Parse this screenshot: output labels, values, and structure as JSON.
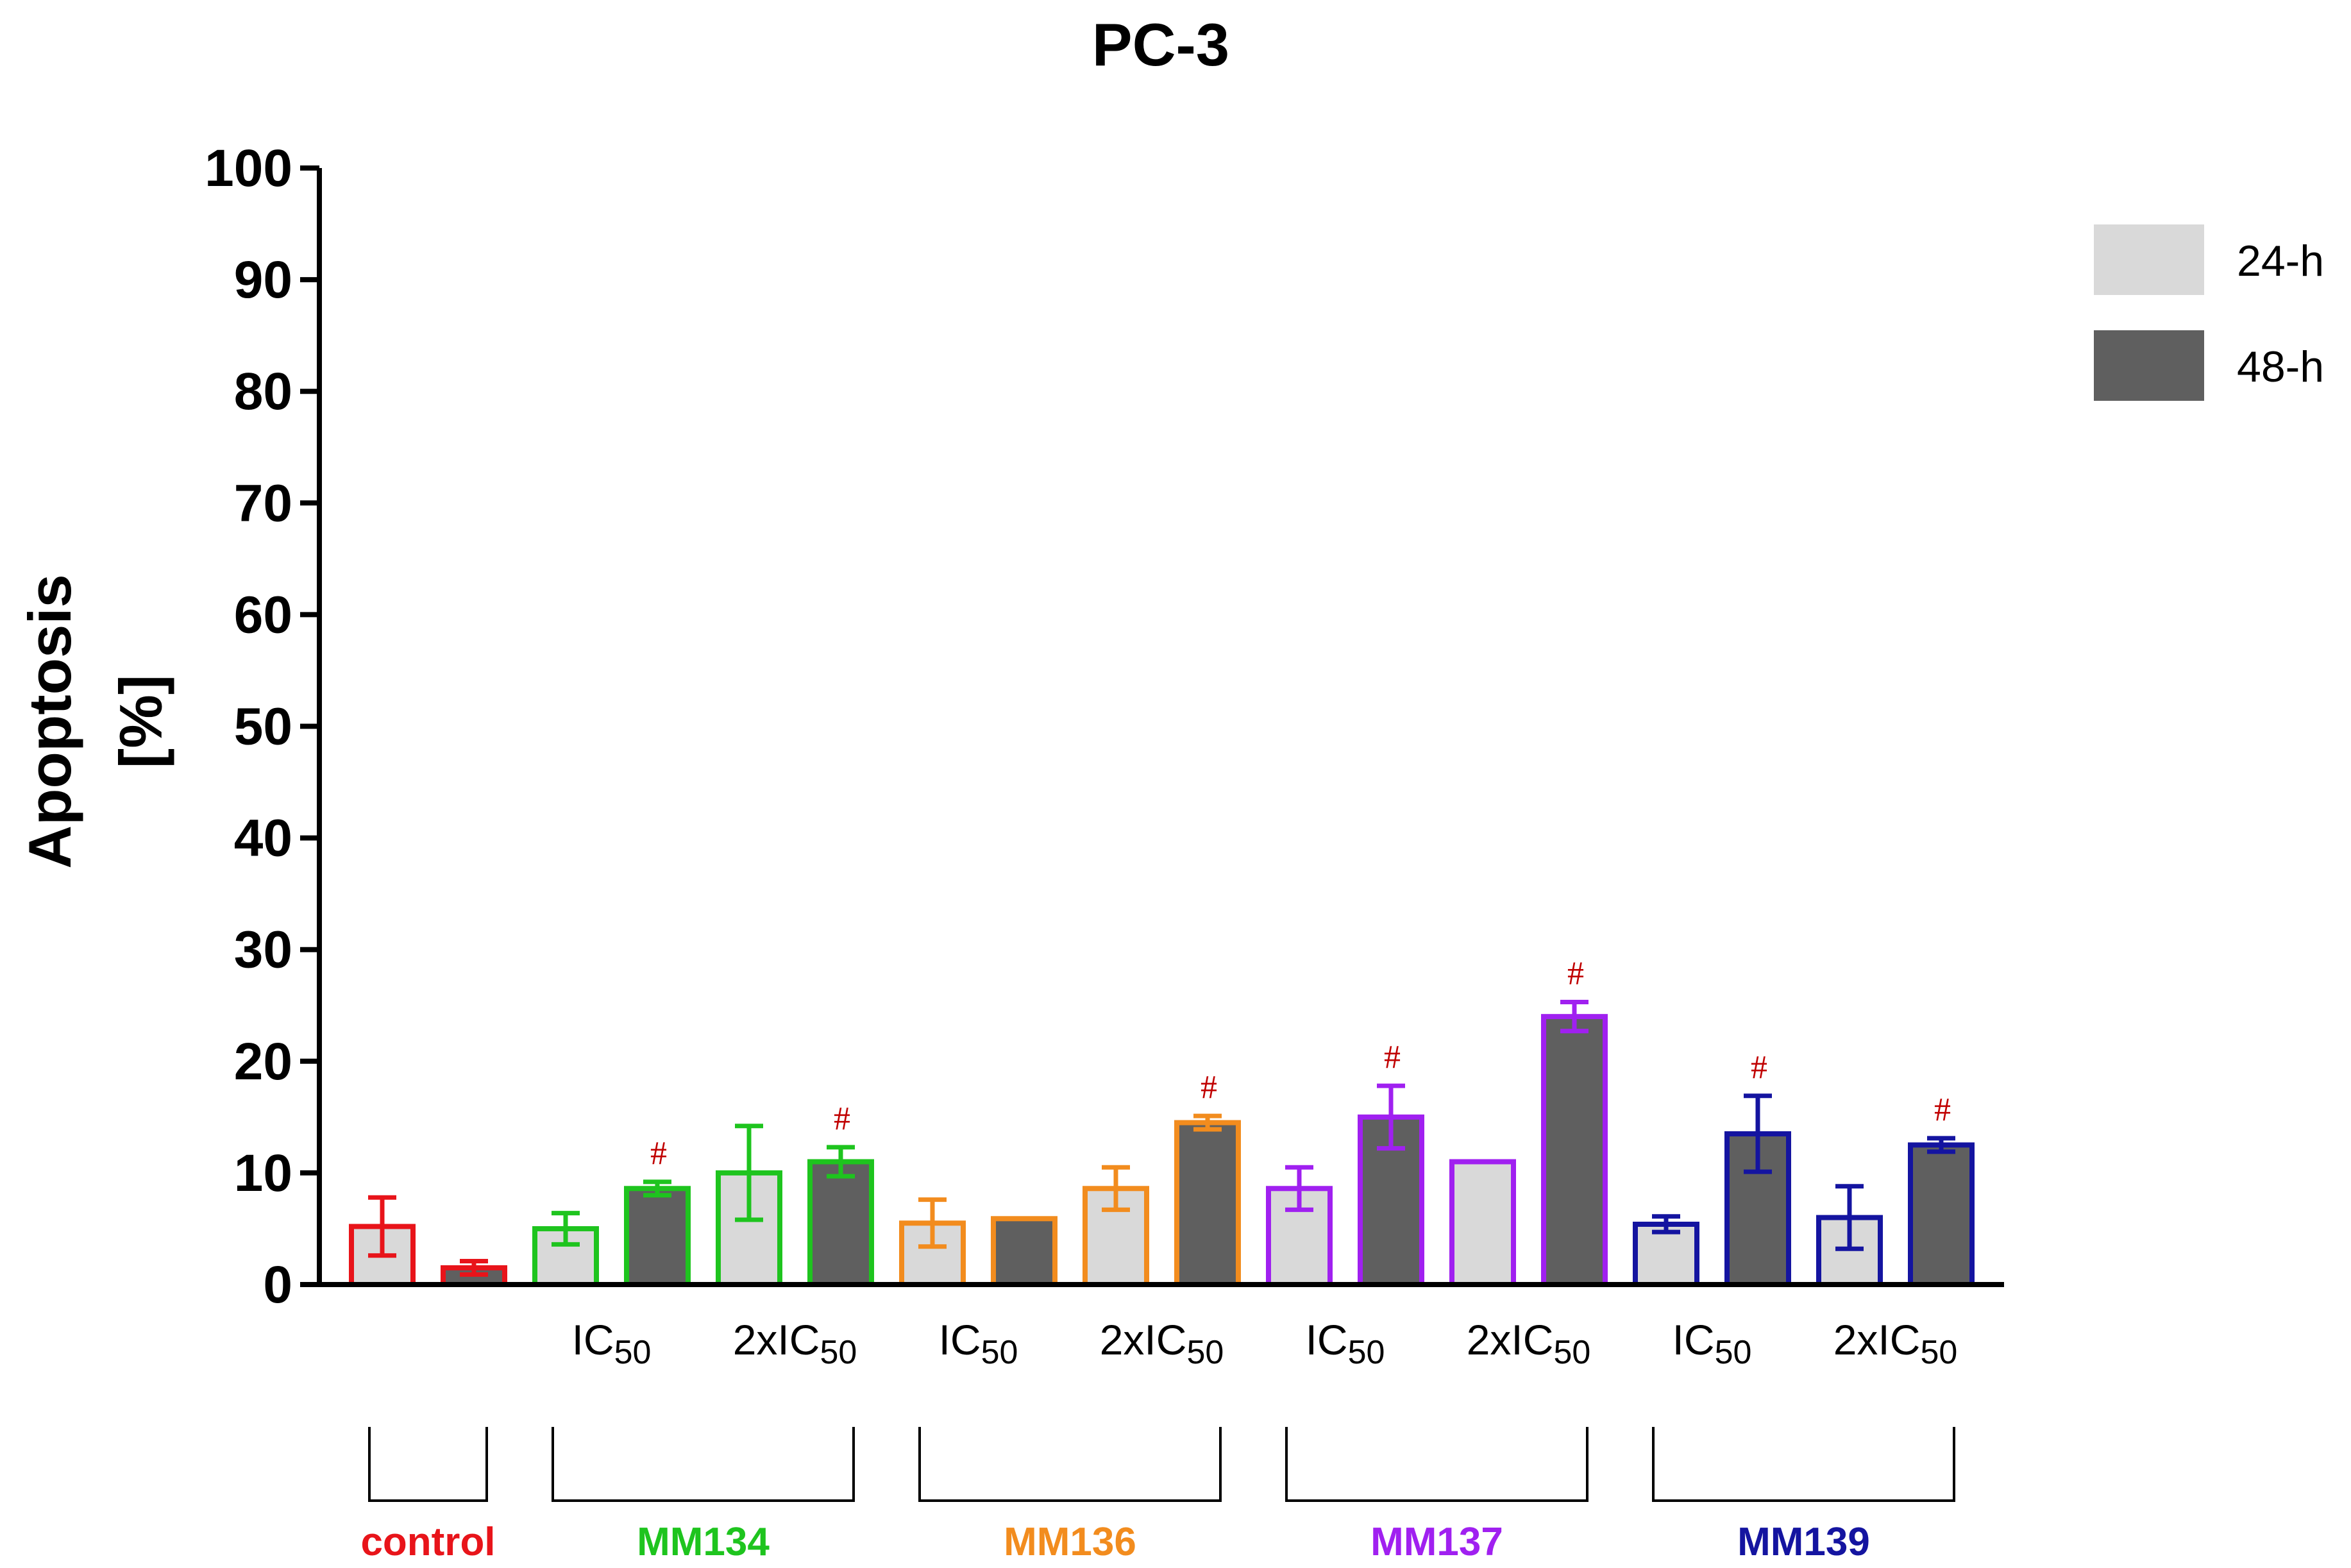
{
  "chart_data": {
    "type": "bar",
    "title": "PC-3",
    "ylabel": "Apoptosis [%]",
    "ylabel_lines": [
      "Apoptosis",
      "[%]"
    ],
    "ylim": [
      0,
      100
    ],
    "yticks": [
      0,
      10,
      20,
      30,
      40,
      50,
      60,
      70,
      80,
      90,
      100
    ],
    "legend": {
      "placement": "top-right",
      "entries": [
        {
          "name": "24-h",
          "color": "#d9d9d9"
        },
        {
          "name": "48-h",
          "color": "#5f5f5f"
        }
      ]
    },
    "significance_marker": "#",
    "significance_color": "#c00000",
    "groups": [
      {
        "name": "control",
        "color": "#e8141a",
        "bars": [
          {
            "series": "24-h",
            "value": 5.2,
            "error": 2.6,
            "sig": false
          },
          {
            "series": "48-h",
            "value": 1.5,
            "error": 0.6,
            "sig": false
          }
        ]
      },
      {
        "name": "MM134",
        "color": "#1ec41e",
        "bars": [
          {
            "dose": "IC",
            "series": "24-h",
            "value": 5.0,
            "error": 1.4,
            "sig": false
          },
          {
            "dose": "IC",
            "series": "48-h",
            "value": 8.6,
            "error": 0.6,
            "sig": true
          },
          {
            "dose": "2xIC",
            "series": "24-h",
            "value": 10.0,
            "error": 4.2,
            "sig": false
          },
          {
            "dose": "2xIC",
            "series": "48-h",
            "value": 11.0,
            "error": 1.3,
            "sig": true
          }
        ]
      },
      {
        "name": "MM136",
        "color": "#f28c1e",
        "bars": [
          {
            "dose": "IC",
            "series": "24-h",
            "value": 5.5,
            "error": 2.1,
            "sig": false
          },
          {
            "dose": "IC",
            "series": "48-h",
            "value": 5.9,
            "error": 0,
            "sig": false
          },
          {
            "dose": "2xIC",
            "series": "24-h",
            "value": 8.6,
            "error": 1.9,
            "sig": false
          },
          {
            "dose": "2xIC",
            "series": "48-h",
            "value": 14.5,
            "error": 0.6,
            "sig": true
          }
        ]
      },
      {
        "name": "MM137",
        "color": "#a020f0",
        "bars": [
          {
            "dose": "IC",
            "series": "24-h",
            "value": 8.6,
            "error": 1.9,
            "sig": false
          },
          {
            "dose": "IC",
            "series": "48-h",
            "value": 15.0,
            "error": 2.8,
            "sig": true
          },
          {
            "dose": "2xIC",
            "series": "24-h",
            "value": 11.0,
            "error": 0,
            "sig": false
          },
          {
            "dose": "2xIC",
            "series": "48-h",
            "value": 24.0,
            "error": 1.3,
            "sig": true
          }
        ]
      },
      {
        "name": "MM139",
        "color": "#1414a0",
        "bars": [
          {
            "dose": "IC",
            "series": "24-h",
            "value": 5.4,
            "error": 0.7,
            "sig": false
          },
          {
            "dose": "IC",
            "series": "48-h",
            "value": 13.5,
            "error": 3.4,
            "sig": true
          },
          {
            "dose": "2xIC",
            "series": "24-h",
            "value": 6.0,
            "error": 2.8,
            "sig": false
          },
          {
            "dose": "2xIC",
            "series": "48-h",
            "value": 12.5,
            "error": 0.6,
            "sig": true
          }
        ]
      }
    ],
    "dose_labels": [
      {
        "group": "MM134",
        "base": "IC",
        "sub": "50"
      },
      {
        "group": "MM134",
        "base": "2xIC",
        "sub": "50"
      },
      {
        "group": "MM136",
        "base": "IC",
        "sub": "50"
      },
      {
        "group": "MM136",
        "base": "2xIC",
        "sub": "50"
      },
      {
        "group": "MM137",
        "base": "IC",
        "sub": "50"
      },
      {
        "group": "MM137",
        "base": "2xIC",
        "sub": "50"
      },
      {
        "group": "MM139",
        "base": "IC",
        "sub": "50"
      },
      {
        "group": "MM139",
        "base": "2xIC",
        "sub": "50"
      }
    ]
  }
}
